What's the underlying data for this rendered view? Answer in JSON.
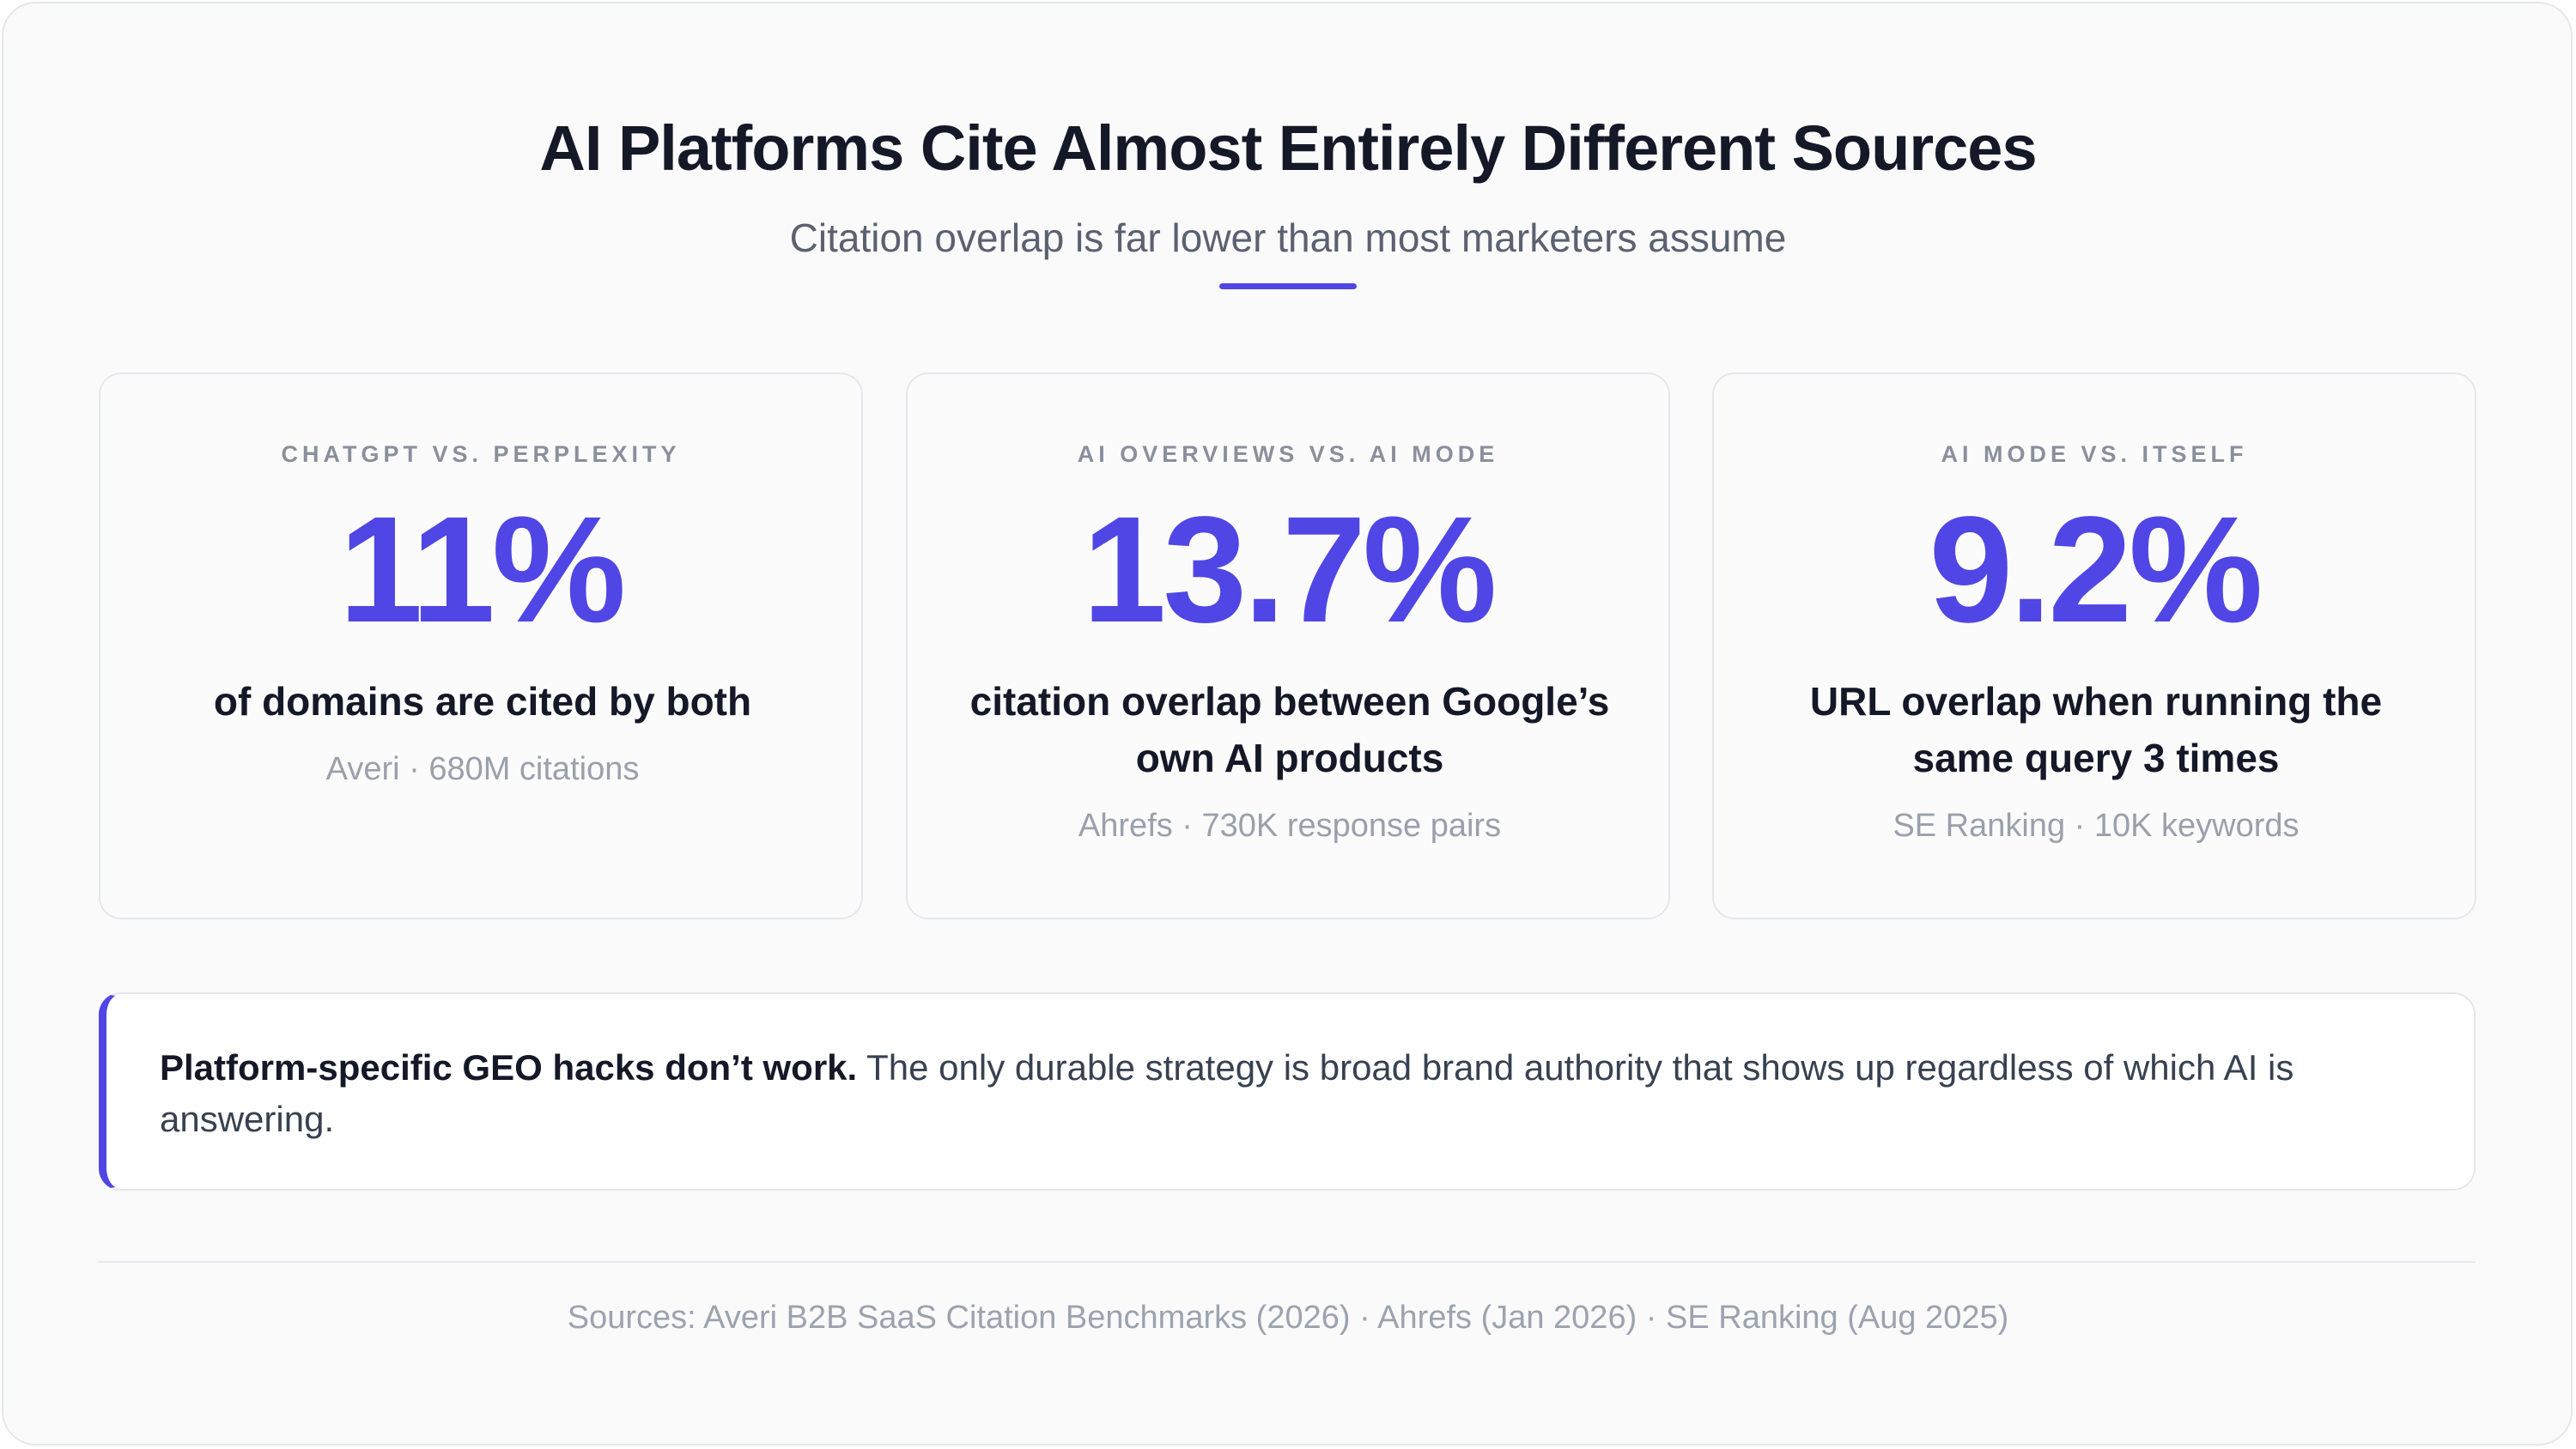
{
  "header": {
    "title": "AI Platforms Cite Almost Entirely Different Sources",
    "subtitle": "Citation overlap is far lower than most marketers assume"
  },
  "cards": [
    {
      "label": "CHATGPT VS. PERPLEXITY",
      "stat": "11%",
      "description": "of domains are cited by both",
      "source": "Averi · 680M citations"
    },
    {
      "label": "AI OVERVIEWS VS. AI MODE",
      "stat": "13.7%",
      "description": "citation overlap between Google’s own AI products",
      "source": "Ahrefs · 730K response pairs"
    },
    {
      "label": "AI MODE VS. ITSELF",
      "stat": "9.2%",
      "description": "URL overlap when running the same query 3 times",
      "source": "SE Ranking · 10K keywords"
    }
  ],
  "callout": {
    "emphasis": "Platform-specific GEO hacks don’t work.",
    "text": "The only durable strategy is broad brand authority that shows up regardless of which AI is answering."
  },
  "footer": {
    "sources": "Sources: Averi B2B SaaS Citation Benchmarks (2026) · Ahrefs (Jan 2026) · SE Ranking (Aug 2025)"
  }
}
